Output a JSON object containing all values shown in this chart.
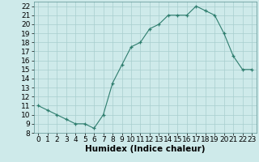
{
  "x": [
    0,
    1,
    2,
    3,
    4,
    5,
    6,
    7,
    8,
    9,
    10,
    11,
    12,
    13,
    14,
    15,
    16,
    17,
    18,
    19,
    20,
    21,
    22,
    23
  ],
  "y": [
    11,
    10.5,
    10,
    9.5,
    9,
    9,
    8.5,
    10,
    13.5,
    15.5,
    17.5,
    18,
    19.5,
    20,
    21,
    21,
    21,
    22,
    21.5,
    21,
    19,
    16.5,
    15,
    15
  ],
  "xlabel": "Humidex (Indice chaleur)",
  "xlim": [
    -0.5,
    23.5
  ],
  "ylim": [
    8,
    22.5
  ],
  "yticks": [
    8,
    9,
    10,
    11,
    12,
    13,
    14,
    15,
    16,
    17,
    18,
    19,
    20,
    21,
    22
  ],
  "xticks": [
    0,
    1,
    2,
    3,
    4,
    5,
    6,
    7,
    8,
    9,
    10,
    11,
    12,
    13,
    14,
    15,
    16,
    17,
    18,
    19,
    20,
    21,
    22,
    23
  ],
  "line_color": "#2e7d6e",
  "marker_color": "#2e7d6e",
  "bg_color": "#ceeaea",
  "grid_color": "#a8cece",
  "label_fontsize": 7.5,
  "tick_fontsize": 6.5
}
